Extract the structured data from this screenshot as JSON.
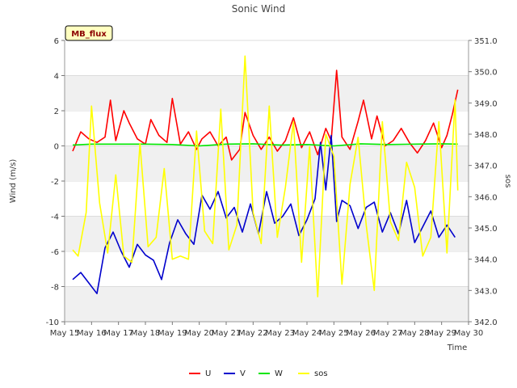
{
  "chart_data": {
    "type": "line",
    "title": "Sonic Wind",
    "badge": "MB_flux",
    "xlabel": "Time",
    "ylabel": "Wind (m/s)",
    "y2label": "sos",
    "x_ticks": [
      "May 15",
      "May 16",
      "May 17",
      "May 18",
      "May 19",
      "May 20",
      "May 21",
      "May 22",
      "May 23",
      "May 24",
      "May 25",
      "May 26",
      "May 27",
      "May 28",
      "May 29",
      "May 30"
    ],
    "xlim": [
      15,
      30
    ],
    "ylim": [
      -10,
      6
    ],
    "y_ticks": [
      -10,
      -8,
      -6,
      -4,
      -2,
      0,
      2,
      4,
      6
    ],
    "y2lim": [
      342.0,
      351.0
    ],
    "y2_ticks": [
      "342.0",
      "343.0",
      "344.0",
      "345.0",
      "346.0",
      "347.0",
      "348.0",
      "349.0",
      "350.0",
      "351.0"
    ],
    "legend_position": "bottom-center",
    "grid_bands": true,
    "series": [
      {
        "name": "U",
        "axis": "left",
        "color": "#ff0000",
        "x": [
          15.3,
          15.6,
          15.9,
          16.2,
          16.5,
          16.7,
          16.9,
          17.2,
          17.4,
          17.7,
          18.0,
          18.2,
          18.5,
          18.8,
          19.0,
          19.3,
          19.6,
          19.9,
          20.1,
          20.4,
          20.7,
          21.0,
          21.2,
          21.5,
          21.7,
          22.0,
          22.3,
          22.6,
          22.9,
          23.2,
          23.5,
          23.8,
          24.1,
          24.4,
          24.7,
          24.9,
          25.1,
          25.3,
          25.6,
          25.9,
          26.1,
          26.4,
          26.6,
          26.9,
          27.2,
          27.5,
          27.8,
          28.1,
          28.4,
          28.7,
          29.0,
          29.2,
          29.4,
          29.6
        ],
        "y": [
          -0.3,
          0.8,
          0.4,
          0.2,
          0.5,
          2.6,
          0.3,
          2.0,
          1.3,
          0.4,
          0.1,
          1.5,
          0.6,
          0.2,
          2.7,
          0.1,
          0.8,
          -0.2,
          0.4,
          0.8,
          0.0,
          0.5,
          -0.8,
          -0.2,
          1.9,
          0.6,
          -0.2,
          0.5,
          -0.3,
          0.3,
          1.6,
          -0.1,
          0.8,
          -0.5,
          1.0,
          0.3,
          4.3,
          0.5,
          -0.2,
          1.4,
          2.6,
          0.4,
          1.7,
          0.0,
          0.3,
          1.0,
          0.2,
          -0.4,
          0.3,
          1.3,
          -0.1,
          0.6,
          1.8,
          3.2
        ]
      },
      {
        "name": "V",
        "axis": "left",
        "color": "#0000cc",
        "x": [
          15.3,
          15.6,
          15.9,
          16.2,
          16.5,
          16.8,
          17.1,
          17.4,
          17.7,
          18.0,
          18.3,
          18.6,
          18.9,
          19.2,
          19.5,
          19.8,
          20.1,
          20.4,
          20.7,
          21.0,
          21.3,
          21.6,
          21.9,
          22.2,
          22.5,
          22.8,
          23.1,
          23.4,
          23.7,
          24.0,
          24.3,
          24.5,
          24.7,
          24.9,
          25.1,
          25.3,
          25.6,
          25.9,
          26.2,
          26.5,
          26.8,
          27.1,
          27.4,
          27.7,
          28.0,
          28.3,
          28.6,
          28.9,
          29.2,
          29.5
        ],
        "y": [
          -7.6,
          -7.2,
          -7.8,
          -8.4,
          -5.8,
          -4.9,
          -6.0,
          -6.9,
          -5.6,
          -6.2,
          -6.5,
          -7.6,
          -5.5,
          -4.2,
          -5.0,
          -5.6,
          -2.8,
          -3.6,
          -2.6,
          -4.1,
          -3.5,
          -4.9,
          -3.3,
          -5.0,
          -2.6,
          -4.4,
          -4.0,
          -3.3,
          -5.1,
          -4.2,
          -3.0,
          0.2,
          -2.5,
          0.6,
          -4.3,
          -3.1,
          -3.4,
          -4.7,
          -3.5,
          -3.2,
          -4.9,
          -3.8,
          -5.0,
          -3.1,
          -5.5,
          -4.6,
          -3.7,
          -5.2,
          -4.5,
          -5.2
        ]
      },
      {
        "name": "W",
        "axis": "left",
        "color": "#00e600",
        "x": [
          15.3,
          16.0,
          17.0,
          18.0,
          19.0,
          20.0,
          21.0,
          22.0,
          23.0,
          24.0,
          25.0,
          26.0,
          27.0,
          28.0,
          29.0,
          29.6
        ],
        "y": [
          0.05,
          0.1,
          0.1,
          0.1,
          0.08,
          0.0,
          0.1,
          0.12,
          0.05,
          0.08,
          0.0,
          0.12,
          0.08,
          0.1,
          0.12,
          0.1
        ]
      },
      {
        "name": "sos",
        "axis": "right",
        "color": "#ffff00",
        "x": [
          15.3,
          15.5,
          15.8,
          16.0,
          16.3,
          16.6,
          16.9,
          17.2,
          17.5,
          17.8,
          18.1,
          18.4,
          18.7,
          19.0,
          19.3,
          19.6,
          19.9,
          20.2,
          20.5,
          20.8,
          21.1,
          21.4,
          21.7,
          22.0,
          22.3,
          22.6,
          22.9,
          23.2,
          23.5,
          23.8,
          24.1,
          24.4,
          24.7,
          25.0,
          25.3,
          25.6,
          25.9,
          26.2,
          26.5,
          26.8,
          27.1,
          27.4,
          27.7,
          28.0,
          28.3,
          28.6,
          28.9,
          29.2,
          29.5,
          29.6
        ],
        "y": [
          344.3,
          344.1,
          345.5,
          348.9,
          345.8,
          344.2,
          346.7,
          344.1,
          343.9,
          347.7,
          344.4,
          344.7,
          346.9,
          344.0,
          344.1,
          344.0,
          348.1,
          344.9,
          344.5,
          348.8,
          344.3,
          345.1,
          350.5,
          345.5,
          344.5,
          348.9,
          344.7,
          346.3,
          348.4,
          343.9,
          347.6,
          342.8,
          348.0,
          347.3,
          343.2,
          346.4,
          347.9,
          345.1,
          343.0,
          348.4,
          345.2,
          344.6,
          347.1,
          346.3,
          344.1,
          344.7,
          348.4,
          344.2,
          349.1,
          346.2
        ]
      }
    ]
  }
}
